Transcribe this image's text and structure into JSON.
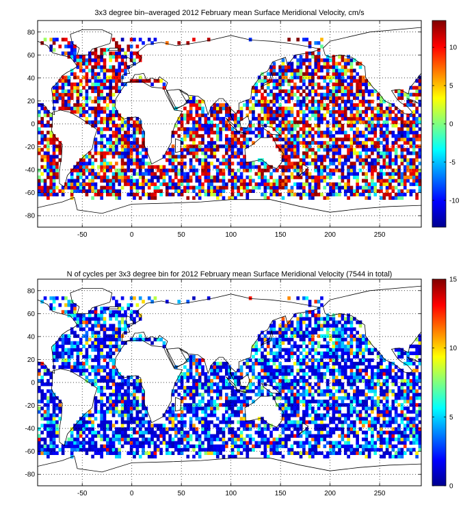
{
  "colors": {
    "background": "#ffffff",
    "coastline": "#000000",
    "grid": "#000000",
    "colormap": "jet"
  },
  "chart_data": [
    {
      "type": "heatmap",
      "title": "3x3 degree bin–averaged 2012 February mean Surface Meridional Velocity, cm/s",
      "xlabel": "",
      "ylabel": "",
      "xlim": [
        -95,
        292
      ],
      "ylim": [
        -90,
        90
      ],
      "bin_size_deg": 3,
      "grid": true,
      "grid_style": "dotted",
      "x_ticks": [
        -50,
        0,
        50,
        100,
        150,
        200,
        250
      ],
      "y_ticks": [
        -80,
        -60,
        -40,
        -20,
        0,
        20,
        40,
        60,
        80
      ],
      "colorbar": {
        "position": "right",
        "colormap": "jet",
        "range": [
          -13.5,
          13.5
        ],
        "ticks": [
          10,
          5,
          0,
          -5,
          -10
        ]
      }
    },
    {
      "type": "heatmap",
      "title": "N of cycles per 3x3 degree bin for 2012 February mean Surface Meridional Velocity (7544 in total)",
      "xlabel": "",
      "ylabel": "",
      "total_count": 7544,
      "xlim": [
        -95,
        292
      ],
      "ylim": [
        -90,
        90
      ],
      "bin_size_deg": 3,
      "grid": true,
      "grid_style": "dotted",
      "x_ticks": [
        -50,
        0,
        50,
        100,
        150,
        200,
        250
      ],
      "y_ticks": [
        -80,
        -60,
        -40,
        -20,
        0,
        20,
        40,
        60,
        80
      ],
      "colorbar": {
        "position": "right",
        "colormap": "jet",
        "range": [
          0,
          15
        ],
        "ticks": [
          15,
          10,
          5,
          0
        ]
      }
    }
  ]
}
